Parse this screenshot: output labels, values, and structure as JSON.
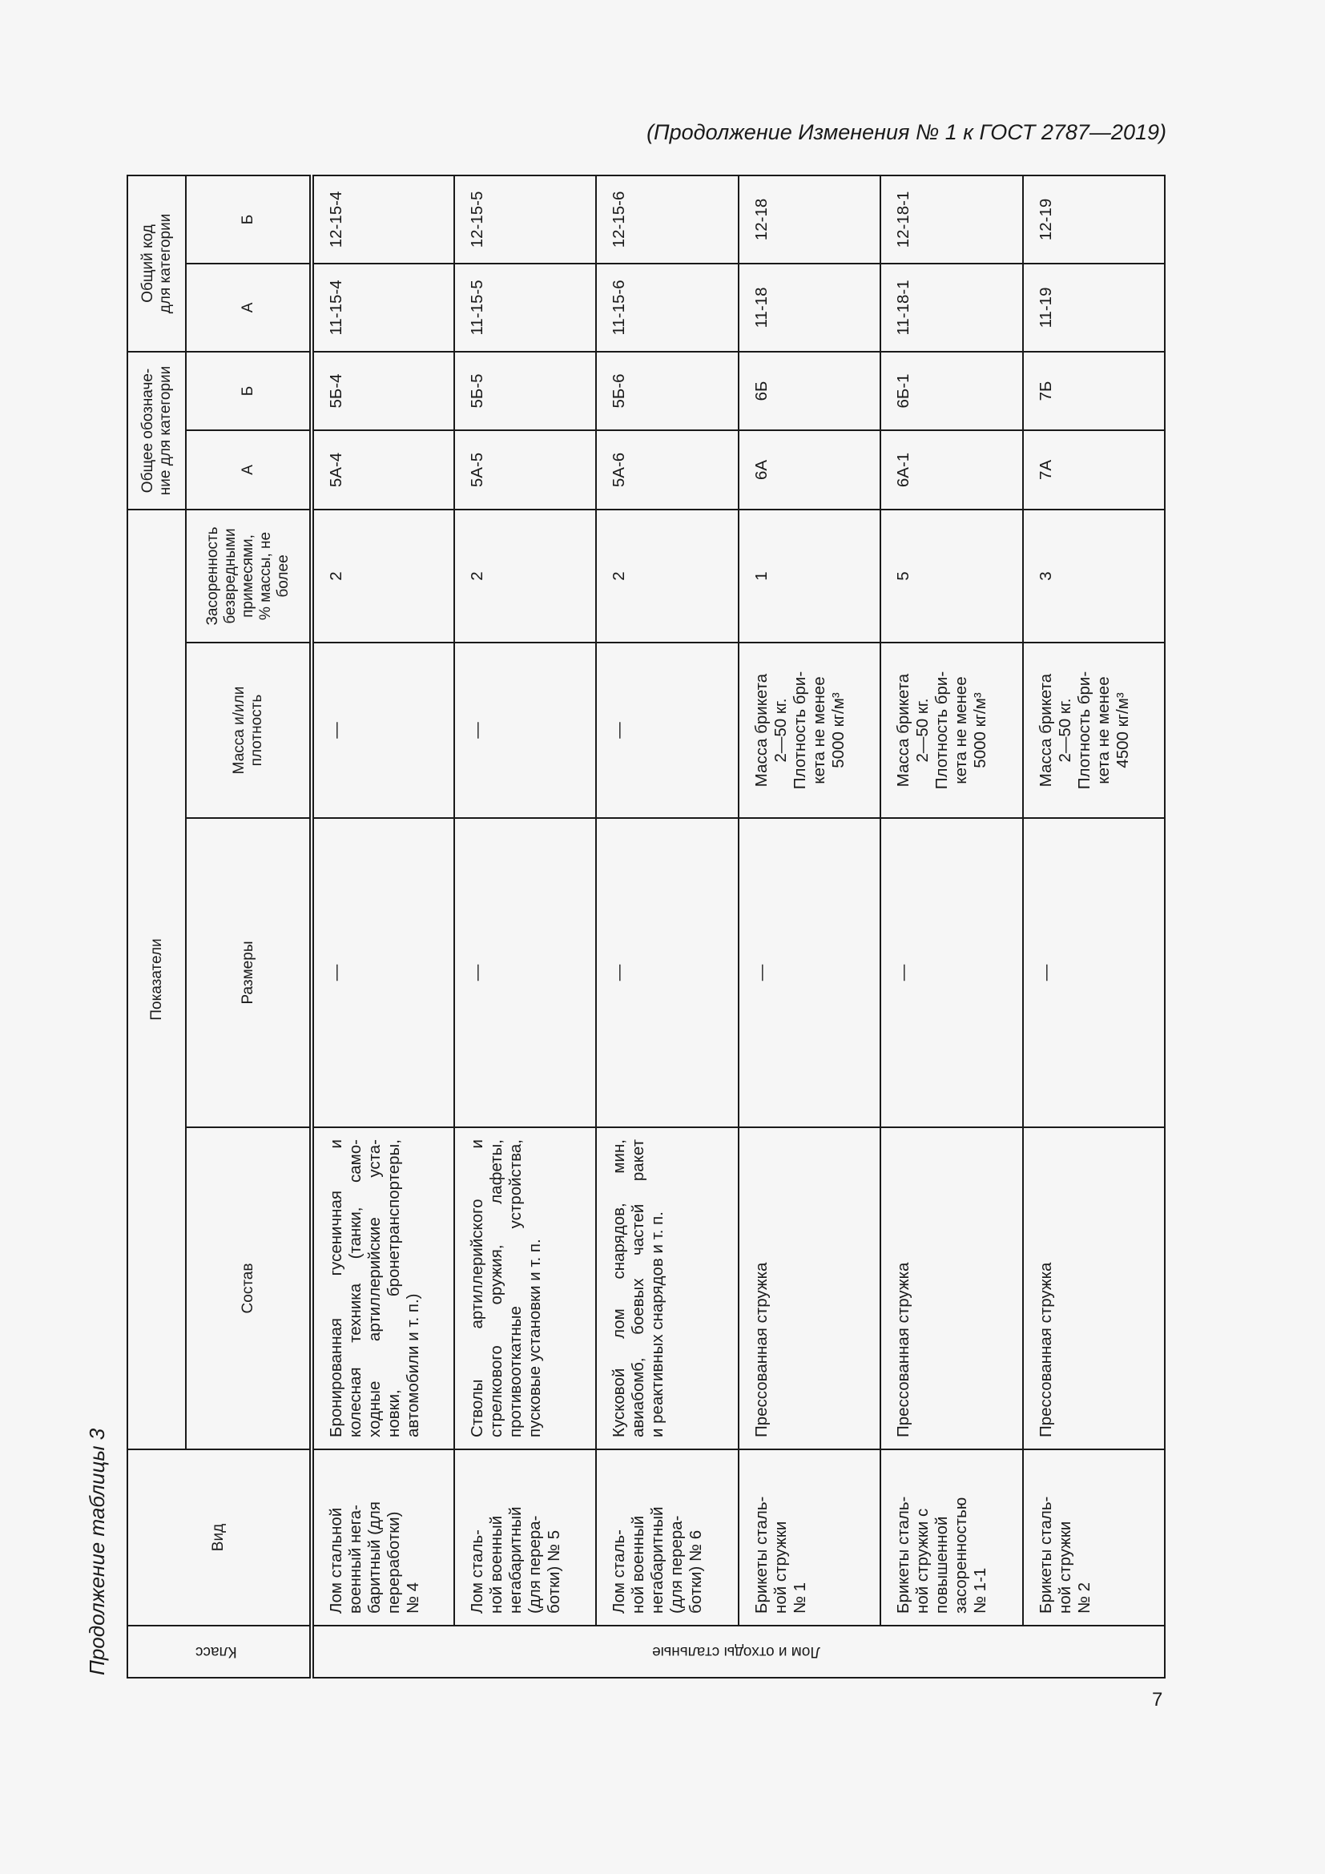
{
  "header_note": "(Продолжение Изменения № 1 к ГОСТ 2787—2019)",
  "table_caption": "Продолжение таблицы 3",
  "page_number": "7",
  "table": {
    "headers": {
      "class": "Класс",
      "type": "Вид",
      "indicators": "Показатели",
      "composition": "Состав",
      "dimensions": "Размеры",
      "mass_density": [
        "Масса и/или",
        "плотность"
      ],
      "contamination": [
        "Засоренность",
        "безвредными",
        "примесями,",
        "% массы, не",
        "более"
      ],
      "designation": [
        "Общее обозначе-",
        "ние для категории"
      ],
      "code": [
        "Общий код",
        "для категории"
      ],
      "cat_a": "А",
      "cat_b": "Б"
    },
    "class_value": "Лом и отходы стальные",
    "rows": [
      {
        "type": [
          "Лом стальной",
          "военный нега-",
          "баритный (для",
          "переработки)",
          "№ 4"
        ],
        "composition": [
          "Бронированная гусеничная и",
          "колесная техника (танки, само-",
          "ходные артиллерийские уста-",
          "новки, бронетранспортеры,",
          "автомобили и т. п.)"
        ],
        "dimensions": "—",
        "mass_density": [
          "—"
        ],
        "contamination": "2",
        "designation_a": "5А-4",
        "designation_b": "5Б-4",
        "code_a": "11-15-4",
        "code_b": "12-15-4"
      },
      {
        "type": [
          "Лом сталь-",
          "ной военный",
          "негабаритный",
          "(для перера-",
          "ботки) № 5"
        ],
        "composition": [
          "Стволы артиллерийского и",
          "стрелкового оружия, лафеты,",
          "противооткатные устройства,",
          "пусковые установки и т. п."
        ],
        "dimensions": "—",
        "mass_density": [
          "—"
        ],
        "contamination": "2",
        "designation_a": "5А-5",
        "designation_b": "5Б-5",
        "code_a": "11-15-5",
        "code_b": "12-15-5"
      },
      {
        "type": [
          "Лом сталь-",
          "ной военный",
          "негабаритный",
          "(для перера-",
          "ботки) № 6"
        ],
        "composition": [
          "Кусковой лом снарядов, мин,",
          "авиабомб, боевых частей ракет",
          "и реактивных снарядов и т. п."
        ],
        "dimensions": "—",
        "mass_density": [
          "—"
        ],
        "contamination": "2",
        "designation_a": "5А-6",
        "designation_b": "5Б-6",
        "code_a": "11-15-6",
        "code_b": "12-15-6"
      },
      {
        "type": [
          "Брикеты сталь-",
          "ной стружки",
          "№ 1"
        ],
        "composition": [
          "Прессованная стружка"
        ],
        "dimensions": "—",
        "mass_density": [
          "Масса брикета",
          "2—50 кг.",
          "Плотность бри-",
          "кета не менее",
          "5000 кг/м³"
        ],
        "contamination": "1",
        "designation_a": "6А",
        "designation_b": "6Б",
        "code_a": "11-18",
        "code_b": "12-18"
      },
      {
        "type": [
          "Брикеты сталь-",
          "ной стружки с",
          "повышенной",
          "засоренностью",
          "№ 1-1"
        ],
        "composition": [
          "Прессованная стружка"
        ],
        "dimensions": "—",
        "mass_density": [
          "Масса брикета",
          "2—50 кг.",
          "Плотность бри-",
          "кета не менее",
          "5000 кг/м³"
        ],
        "contamination": "5",
        "designation_a": "6А-1",
        "designation_b": "6Б-1",
        "code_a": "11-18-1",
        "code_b": "12-18-1"
      },
      {
        "type": [
          "Брикеты сталь-",
          "ной стружки",
          "№ 2"
        ],
        "composition": [
          "Прессованная стружка"
        ],
        "dimensions": "—",
        "mass_density": [
          "Масса брикета",
          "2—50 кг.",
          "Плотность бри-",
          "кета не менее",
          "4500 кг/м³"
        ],
        "contamination": "3",
        "designation_a": "7А",
        "designation_b": "7Б",
        "code_a": "11-19",
        "code_b": "12-19"
      }
    ]
  }
}
